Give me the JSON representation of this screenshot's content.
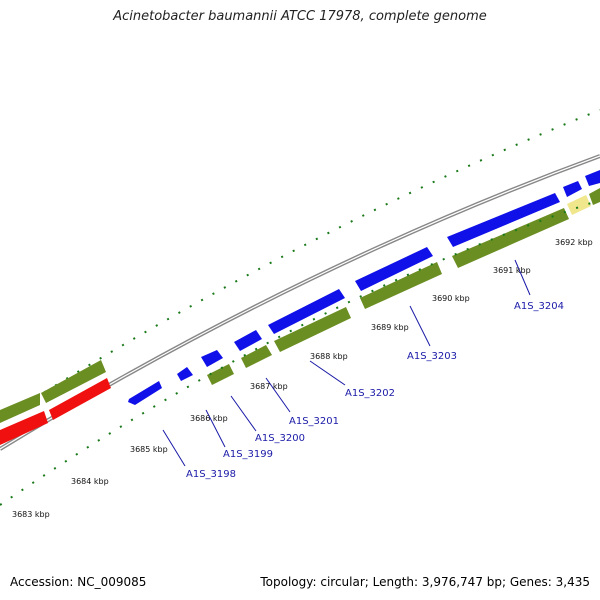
{
  "title": "Acinetobacter baumannii ATCC 17978, complete genome",
  "footer": {
    "accession": "Accession: NC_009085",
    "summary": "Topology: circular; Length: 3,976,747 bp; Genes: 3,435"
  },
  "colors": {
    "forward_cds": "#1010e8",
    "reverse_cds": "#6b8e23",
    "rna": "#f01010",
    "other": "#f0e68c",
    "backbone": "#888888",
    "ticks": "#1a7a1a",
    "label_line": "#1a1aa8"
  },
  "scale": [
    {
      "label": "3683 kbp"
    },
    {
      "label": "3684 kbp"
    },
    {
      "label": "3685 kbp"
    },
    {
      "label": "3686 kbp"
    },
    {
      "label": "3687 kbp"
    },
    {
      "label": "3688 kbp"
    },
    {
      "label": "3689 kbp"
    },
    {
      "label": "3690 kbp"
    },
    {
      "label": "3691 kbp"
    },
    {
      "label": "3692 kbp"
    }
  ],
  "gene_labels": [
    {
      "label": "A1S_3198"
    },
    {
      "label": "A1S_3199"
    },
    {
      "label": "A1S_3200"
    },
    {
      "label": "A1S_3201"
    },
    {
      "label": "A1S_3202"
    },
    {
      "label": "A1S_3203"
    },
    {
      "label": "A1S_3204"
    }
  ]
}
